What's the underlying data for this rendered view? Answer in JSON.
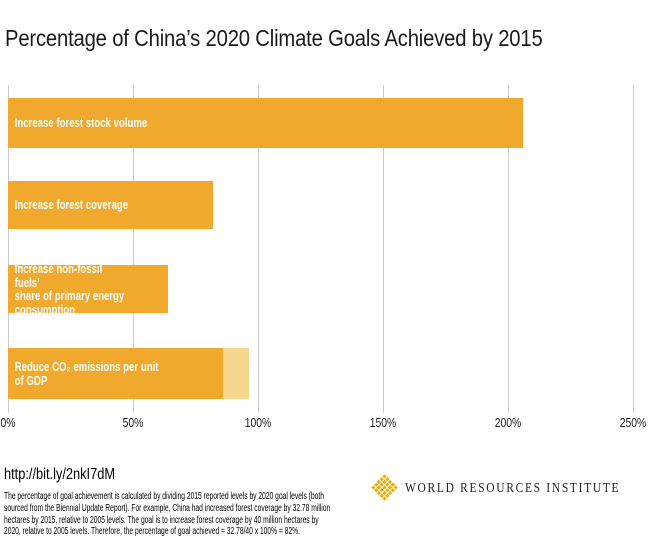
{
  "title": "Percentage of China’s 2020 Climate Goals Achieved by 2015",
  "chart_data": {
    "type": "bar",
    "orientation": "horizontal",
    "title": "Percentage of China’s 2020 Climate Goals Achieved by 2015",
    "categories": [
      "Increase forest stock volume",
      "Increase forest coverage",
      "Increase non-fossil fuels’ share of primary energy consumption",
      "Reduce CO₂ emissions per unit of GDP"
    ],
    "values": [
      206,
      82,
      64,
      86
    ],
    "co2_goal_range_segment": {
      "from": 86,
      "to": 96.5
    },
    "x_ticks": [
      "0%",
      "50%",
      "100%",
      "150%",
      "200%",
      "250%"
    ],
    "xlim": [
      0,
      250
    ],
    "gridlines": true,
    "legend": "none",
    "bar_color": "#F0A82D",
    "light_bar_color": "#F6D68C"
  },
  "bars": [
    {
      "label_lines": [
        "Increase forest stock volume"
      ],
      "value": 206
    },
    {
      "label_lines": [
        "Increase forest coverage"
      ],
      "value": 82
    },
    {
      "label_lines": [
        "Increase non-fossil fuels’",
        "share of primary energy",
        "consumption"
      ],
      "value": 64
    },
    {
      "label_lines": [
        "Reduce CO₂ emissions per unit of GDP"
      ],
      "value": 86,
      "light_to": 96.5
    }
  ],
  "footer": {
    "link": "http://bit.ly/2nkI7dM",
    "note_lines": [
      "The percentage of goal achievement is calculated by dividing 2015 reported levels by 2020 goal levels (both",
      "sourced from the Biennial Update Report). For example, China had increased forest coverage by 32.78 million",
      "hectares by 2015, relative to 2005 levels. The goal is to increase forest coverage by 40 million hectares by",
      "2020, relative to 2005 levels. Therefore, the percentage of goal achieved = 32.78/40 x 100% = 82%."
    ],
    "logo_text": "WORLD RESOURCES INSTITUTE"
  },
  "colors": {
    "bar": "#F0A82D",
    "bar_light": "#F6D68C",
    "gridline": "#CCCCCC",
    "text": "#1A1A1A",
    "logo_gold": "#F0AB00"
  }
}
